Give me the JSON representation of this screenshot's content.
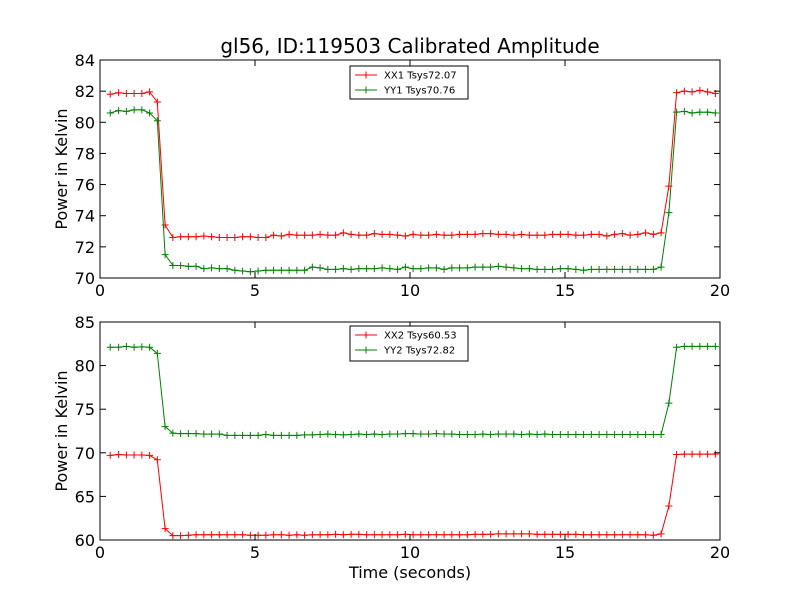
{
  "figure": {
    "title": "gl56, ID:119503 Calibrated Amplitude",
    "xlabel": "Time (seconds)"
  },
  "chart_data": [
    {
      "type": "line",
      "title": "gl56, ID:119503 Calibrated Amplitude",
      "xlabel": "",
      "ylabel": "Power in Kelvin",
      "xlim": [
        0,
        20
      ],
      "ylim": [
        70,
        84
      ],
      "xticks": [
        0,
        5,
        10,
        15,
        20
      ],
      "yticks": [
        70,
        72,
        74,
        76,
        78,
        80,
        82,
        84
      ],
      "grid": false,
      "legend_position": "top-center",
      "x": [
        0.33,
        0.6,
        0.85,
        1.1,
        1.35,
        1.6,
        1.85,
        2.1,
        2.35,
        2.6,
        2.85,
        3.1,
        3.35,
        3.6,
        3.85,
        4.1,
        4.35,
        4.6,
        4.85,
        5.1,
        5.35,
        5.6,
        5.85,
        6.1,
        6.35,
        6.6,
        6.85,
        7.1,
        7.35,
        7.6,
        7.85,
        8.1,
        8.35,
        8.6,
        8.85,
        9.1,
        9.35,
        9.6,
        9.85,
        10.1,
        10.35,
        10.6,
        10.85,
        11.1,
        11.35,
        11.6,
        11.85,
        12.1,
        12.35,
        12.6,
        12.85,
        13.1,
        13.35,
        13.6,
        13.85,
        14.1,
        14.35,
        14.6,
        14.85,
        15.1,
        15.35,
        15.6,
        15.85,
        16.1,
        16.35,
        16.6,
        16.85,
        17.1,
        17.35,
        17.6,
        17.85,
        18.1,
        18.35,
        18.6,
        18.85,
        19.1,
        19.35,
        19.6,
        19.85
      ],
      "series": [
        {
          "name": "XX1 Tsys72.07",
          "color": "#ff0000",
          "values": [
            81.8,
            81.9,
            81.85,
            81.85,
            81.85,
            81.95,
            81.3,
            73.4,
            72.6,
            72.65,
            72.65,
            72.65,
            72.7,
            72.65,
            72.6,
            72.6,
            72.6,
            72.65,
            72.65,
            72.6,
            72.6,
            72.75,
            72.7,
            72.8,
            72.75,
            72.75,
            72.75,
            72.8,
            72.75,
            72.75,
            72.9,
            72.8,
            72.75,
            72.75,
            72.85,
            72.8,
            72.8,
            72.75,
            72.7,
            72.8,
            72.75,
            72.75,
            72.8,
            72.75,
            72.75,
            72.8,
            72.8,
            72.8,
            72.85,
            72.85,
            72.8,
            72.8,
            72.75,
            72.8,
            72.75,
            72.75,
            72.75,
            72.8,
            72.8,
            72.8,
            72.75,
            72.75,
            72.8,
            72.8,
            72.7,
            72.8,
            72.85,
            72.75,
            72.8,
            72.9,
            72.8,
            72.9,
            75.9,
            81.9,
            82.0,
            81.95,
            82.05,
            81.95,
            81.85
          ]
        },
        {
          "name": "YY1 Tsys70.76",
          "color": "#008000",
          "values": [
            80.6,
            80.75,
            80.7,
            80.8,
            80.8,
            80.6,
            80.1,
            71.5,
            70.8,
            70.8,
            70.75,
            70.75,
            70.6,
            70.65,
            70.6,
            70.6,
            70.5,
            70.45,
            70.4,
            70.45,
            70.5,
            70.5,
            70.5,
            70.5,
            70.5,
            70.5,
            70.7,
            70.65,
            70.55,
            70.55,
            70.6,
            70.55,
            70.6,
            70.6,
            70.6,
            70.65,
            70.6,
            70.55,
            70.7,
            70.6,
            70.6,
            70.65,
            70.65,
            70.55,
            70.65,
            70.65,
            70.65,
            70.7,
            70.7,
            70.7,
            70.75,
            70.7,
            70.65,
            70.6,
            70.6,
            70.55,
            70.55,
            70.55,
            70.6,
            70.6,
            70.55,
            70.5,
            70.55,
            70.55,
            70.55,
            70.55,
            70.55,
            70.55,
            70.55,
            70.55,
            70.55,
            70.7,
            74.2,
            80.65,
            80.7,
            80.6,
            80.65,
            80.65,
            80.6
          ]
        }
      ]
    },
    {
      "type": "line",
      "title": "",
      "xlabel": "Time (seconds)",
      "ylabel": "Power in Kelvin",
      "xlim": [
        0,
        20
      ],
      "ylim": [
        60,
        85
      ],
      "xticks": [
        0,
        5,
        10,
        15,
        20
      ],
      "yticks": [
        60,
        65,
        70,
        75,
        80,
        85
      ],
      "grid": false,
      "legend_position": "top-center",
      "x": [
        0.33,
        0.6,
        0.85,
        1.1,
        1.35,
        1.6,
        1.85,
        2.1,
        2.35,
        2.6,
        2.85,
        3.1,
        3.35,
        3.6,
        3.85,
        4.1,
        4.35,
        4.6,
        4.85,
        5.1,
        5.35,
        5.6,
        5.85,
        6.1,
        6.35,
        6.6,
        6.85,
        7.1,
        7.35,
        7.6,
        7.85,
        8.1,
        8.35,
        8.6,
        8.85,
        9.1,
        9.35,
        9.6,
        9.85,
        10.1,
        10.35,
        10.6,
        10.85,
        11.1,
        11.35,
        11.6,
        11.85,
        12.1,
        12.35,
        12.6,
        12.85,
        13.1,
        13.35,
        13.6,
        13.85,
        14.1,
        14.35,
        14.6,
        14.85,
        15.1,
        15.35,
        15.6,
        15.85,
        16.1,
        16.35,
        16.6,
        16.85,
        17.1,
        17.35,
        17.6,
        17.85,
        18.1,
        18.35,
        18.6,
        18.85,
        19.1,
        19.35,
        19.6,
        19.85
      ],
      "series": [
        {
          "name": "XX2 Tsys60.53",
          "color": "#ff0000",
          "values": [
            69.7,
            69.8,
            69.75,
            69.75,
            69.75,
            69.7,
            69.2,
            61.3,
            60.5,
            60.5,
            60.55,
            60.6,
            60.6,
            60.6,
            60.6,
            60.6,
            60.6,
            60.6,
            60.55,
            60.55,
            60.55,
            60.6,
            60.6,
            60.55,
            60.6,
            60.55,
            60.6,
            60.6,
            60.6,
            60.65,
            60.6,
            60.65,
            60.65,
            60.6,
            60.6,
            60.6,
            60.6,
            60.6,
            60.65,
            60.6,
            60.6,
            60.6,
            60.6,
            60.6,
            60.6,
            60.6,
            60.6,
            60.65,
            60.65,
            60.65,
            60.7,
            60.7,
            60.7,
            60.7,
            60.7,
            60.65,
            60.65,
            60.65,
            60.65,
            60.65,
            60.65,
            60.6,
            60.6,
            60.6,
            60.6,
            60.6,
            60.6,
            60.6,
            60.6,
            60.6,
            60.55,
            60.7,
            63.9,
            69.8,
            69.85,
            69.85,
            69.85,
            69.85,
            69.85
          ]
        },
        {
          "name": "YY2 Tsys72.82",
          "color": "#008000",
          "values": [
            82.1,
            82.1,
            82.2,
            82.1,
            82.15,
            82.1,
            81.4,
            73.0,
            72.25,
            72.2,
            72.2,
            72.2,
            72.15,
            72.15,
            72.15,
            72.0,
            72.0,
            72.0,
            72.0,
            72.0,
            72.1,
            72.0,
            72.0,
            72.0,
            72.0,
            72.05,
            72.05,
            72.1,
            72.15,
            72.1,
            72.05,
            72.1,
            72.15,
            72.1,
            72.15,
            72.1,
            72.15,
            72.15,
            72.2,
            72.2,
            72.15,
            72.15,
            72.2,
            72.15,
            72.15,
            72.1,
            72.1,
            72.1,
            72.15,
            72.1,
            72.15,
            72.15,
            72.15,
            72.1,
            72.15,
            72.1,
            72.15,
            72.1,
            72.1,
            72.1,
            72.1,
            72.1,
            72.1,
            72.1,
            72.1,
            72.1,
            72.1,
            72.1,
            72.1,
            72.1,
            72.1,
            72.1,
            75.7,
            82.1,
            82.2,
            82.2,
            82.2,
            82.2,
            82.2
          ]
        }
      ]
    }
  ]
}
